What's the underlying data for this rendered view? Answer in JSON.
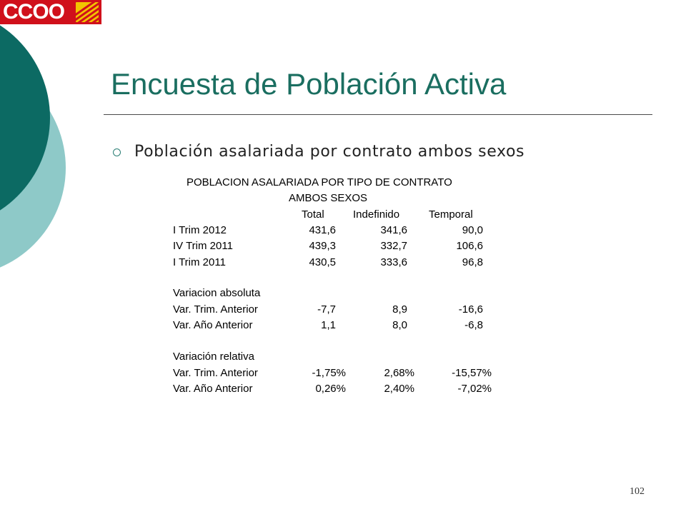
{
  "logo": {
    "text": "CCOO"
  },
  "title": "Encuesta de Población Activa",
  "bullet": "Población asalariada por contrato ambos sexos",
  "table": {
    "heading_1": "POBLACION ASALARIADA  POR TIPO DE CONTRATO",
    "heading_2": "AMBOS SEXOS",
    "columns": [
      "Total",
      "Indefinido",
      "Temporal"
    ],
    "rows": [
      {
        "label": "I Trim 2012",
        "values": [
          "431,6",
          "341,6",
          "90,0"
        ]
      },
      {
        "label": "IV Trim 2011",
        "values": [
          "439,3",
          "332,7",
          "106,6"
        ]
      },
      {
        "label": "I Trim 2011",
        "values": [
          "430,5",
          "333,6",
          "96,8"
        ]
      },
      {
        "label": "Variacion absoluta",
        "values": [
          "",
          "",
          ""
        ]
      },
      {
        "label": "Var. Trim. Anterior",
        "values": [
          "-7,7",
          "8,9",
          "-16,6"
        ]
      },
      {
        "label": "Var. Año Anterior",
        "values": [
          "1,1",
          "8,0",
          "-6,8"
        ]
      },
      {
        "label": "Variación relativa",
        "values": [
          "",
          "",
          ""
        ]
      },
      {
        "label": "Var. Trim. Anterior",
        "values": [
          "-1,75%",
          "2,68%",
          "-15,57%"
        ]
      },
      {
        "label": "Var. Año Anterior",
        "values": [
          "0,26%",
          "2,40%",
          "-7,02%"
        ]
      }
    ]
  },
  "page_number": "102",
  "colors": {
    "title": "#1a6e60",
    "deco_dark": "#0c6a63",
    "deco_light": "#8ec9c8",
    "logo_red": "#d0101b"
  }
}
